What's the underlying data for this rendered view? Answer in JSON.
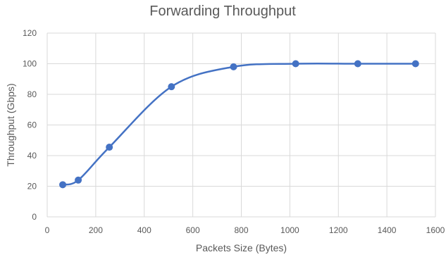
{
  "chart_data": {
    "type": "line",
    "title": "Forwarding Throughput",
    "xlabel": "Packets Size (Bytes)",
    "ylabel": "Throughput (Gbps)",
    "xlim": [
      0,
      1600
    ],
    "ylim": [
      0,
      120
    ],
    "xticks": [
      0,
      200,
      400,
      600,
      800,
      1000,
      1200,
      1400,
      1600
    ],
    "yticks": [
      0,
      20,
      40,
      60,
      80,
      100,
      120
    ],
    "grid": true,
    "legend": "none",
    "smoothed": true,
    "series": [
      {
        "color": "#4472c4",
        "x": [
          64,
          128,
          256,
          512,
          768,
          1024,
          1280,
          1518
        ],
        "y": [
          21,
          24,
          45.5,
          85,
          98,
          100,
          100,
          100
        ]
      }
    ]
  }
}
